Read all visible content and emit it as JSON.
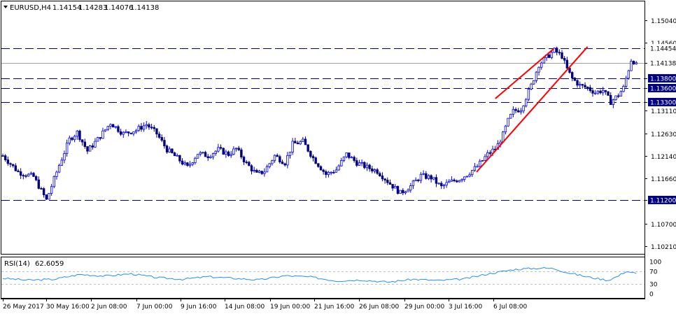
{
  "header": {
    "symbol": "EURUSD,H4",
    "open": "1.14154",
    "high": "1.14283",
    "low": "1.14076",
    "close": "1.14138"
  },
  "rsi_header": {
    "label": "RSI(14)",
    "value": "62.6059"
  },
  "colors": {
    "bull_candle": "#0000ff",
    "bear_candle": "#000080",
    "level_line": "#000080",
    "trend_line": "#ff0000",
    "rsi_line": "#1e90ff",
    "tag_bg": "#000080",
    "tag_text": "#ffffff"
  },
  "chart_data": [
    {
      "type": "candlestick",
      "symbol": "EURUSD",
      "timeframe": "H4",
      "ylim": [
        1.1005,
        1.1545
      ],
      "y_ticks": [
        1.1504,
        1.1456,
        1.14138,
        1.138,
        1.136,
        1.133,
        1.1311,
        1.1263,
        1.1214,
        1.1166,
        1.112,
        1.107,
        1.1021
      ],
      "x_ticks": [
        "26 May 2017",
        "30 May 16:00",
        "2 Jun 08:00",
        "7 Jun 00:00",
        "9 Jun 16:00",
        "14 Jun 08:00",
        "19 Jun 00:00",
        "21 Jun 16:00",
        "26 Jun 08:00",
        "29 Jun 00:00",
        "3 Jul 16:00",
        "6 Jul 08:00"
      ],
      "current_price": 1.14138,
      "horizontal_levels": [
        {
          "label": "1.14454",
          "value": 1.14454
        },
        {
          "label": "1.13800",
          "value": 1.138
        },
        {
          "label": "1.13600",
          "value": 1.136
        },
        {
          "label": "1.13300",
          "value": 1.133
        },
        {
          "label": "1.11200",
          "value": 1.112
        }
      ],
      "trend_lines": [
        {
          "from": {
            "x": "26 Jun 08:00",
            "y": 1.118
          },
          "to": {
            "x": "6 Jul 20:00",
            "y": 1.1448
          }
        },
        {
          "from": {
            "x": "29 Jun 04:00",
            "y": 1.1444
          },
          "to": {
            "x": "5 Jul 12:00",
            "y": 1.1337
          }
        }
      ],
      "path": [
        [
          0,
          1.1215
        ],
        [
          6,
          1.118
        ],
        [
          12,
          1.117
        ],
        [
          17,
          1.112
        ],
        [
          22,
          1.1195
        ],
        [
          26,
          1.125
        ],
        [
          29,
          1.1265
        ],
        [
          33,
          1.1225
        ],
        [
          37,
          1.125
        ],
        [
          42,
          1.1285
        ],
        [
          47,
          1.1262
        ],
        [
          52,
          1.127
        ],
        [
          56,
          1.1282
        ],
        [
          60,
          1.1262
        ],
        [
          64,
          1.1228
        ],
        [
          68,
          1.121
        ],
        [
          72,
          1.119
        ],
        [
          76,
          1.122
        ],
        [
          80,
          1.1215
        ],
        [
          84,
          1.1228
        ],
        [
          88,
          1.1218
        ],
        [
          91,
          1.123
        ],
        [
          95,
          1.1198
        ],
        [
          99,
          1.1175
        ],
        [
          102,
          1.1182
        ],
        [
          106,
          1.1215
        ],
        [
          110,
          1.12
        ],
        [
          113,
          1.124
        ],
        [
          117,
          1.1245
        ],
        [
          121,
          1.121
        ],
        [
          126,
          1.1175
        ],
        [
          130,
          1.1185
        ],
        [
          134,
          1.1218
        ],
        [
          138,
          1.12
        ],
        [
          142,
          1.119
        ],
        [
          146,
          1.1182
        ],
        [
          151,
          1.1155
        ],
        [
          155,
          1.1135
        ],
        [
          159,
          1.115
        ],
        [
          163,
          1.1172
        ],
        [
          167,
          1.1168
        ],
        [
          171,
          1.1148
        ],
        [
          174,
          1.1158
        ],
        [
          178,
          1.1165
        ],
        [
          181,
          1.1175
        ],
        [
          185,
          1.1192
        ],
        [
          189,
          1.1218
        ],
        [
          192,
          1.123
        ],
        [
          193,
          1.1238
        ],
        [
          195,
          1.126
        ],
        [
          197,
          1.129
        ],
        [
          199,
          1.131
        ],
        [
          202,
          1.1315
        ],
        [
          206,
          1.1365
        ],
        [
          209,
          1.141
        ],
        [
          212,
          1.1425
        ],
        [
          215,
          1.144
        ],
        [
          218,
          1.1428
        ],
        [
          220,
          1.14
        ],
        [
          222,
          1.138
        ],
        [
          225,
          1.1365
        ],
        [
          228,
          1.136
        ],
        [
          231,
          1.135
        ],
        [
          234,
          1.1355
        ],
        [
          237,
          1.133
        ],
        [
          240,
          1.1345
        ],
        [
          242,
          1.136
        ],
        [
          245,
          1.142
        ],
        [
          247,
          1.1414
        ]
      ]
    },
    {
      "type": "line",
      "name": "RSI(14)",
      "current": 62.6059,
      "ylim": [
        0,
        100
      ],
      "y_ticks": [
        100,
        70,
        30,
        0
      ],
      "levels": [
        70,
        30
      ],
      "path": [
        [
          0,
          48
        ],
        [
          10,
          42
        ],
        [
          20,
          45
        ],
        [
          30,
          60
        ],
        [
          40,
          55
        ],
        [
          50,
          62
        ],
        [
          60,
          50
        ],
        [
          70,
          45
        ],
        [
          80,
          53
        ],
        [
          90,
          48
        ],
        [
          100,
          43
        ],
        [
          110,
          56
        ],
        [
          120,
          52
        ],
        [
          130,
          40
        ],
        [
          140,
          43
        ],
        [
          150,
          36
        ],
        [
          160,
          45
        ],
        [
          170,
          41
        ],
        [
          180,
          46
        ],
        [
          190,
          63
        ],
        [
          200,
          76
        ],
        [
          210,
          80
        ],
        [
          215,
          78
        ],
        [
          220,
          66
        ],
        [
          228,
          52
        ],
        [
          236,
          42
        ],
        [
          240,
          55
        ],
        [
          243,
          70
        ],
        [
          247,
          63
        ]
      ]
    }
  ]
}
